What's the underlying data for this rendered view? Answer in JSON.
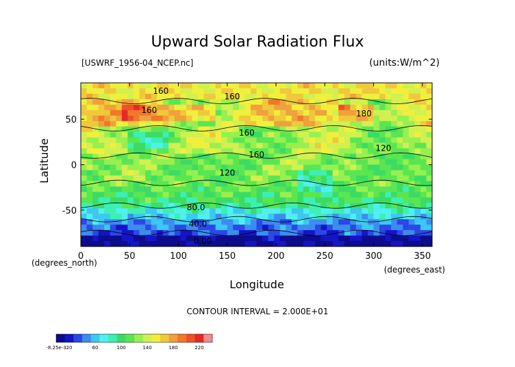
{
  "chart_data": {
    "type": "heatmap",
    "title": "Upward Solar Radiation Flux",
    "file_label": "[USWRF_1956-04_NCEP.nc]",
    "units_label": "(units:W/m^2)",
    "xlabel": "Longitude",
    "ylabel": "Latitude",
    "x_unit_label": "(degrees_east)",
    "y_unit_label": "(degrees_north)",
    "xlim": [
      0,
      360
    ],
    "ylim": [
      -90,
      90
    ],
    "x_ticks": [
      "0",
      "50",
      "100",
      "150",
      "200",
      "250",
      "300",
      "350"
    ],
    "x_tick_values": [
      0,
      50,
      100,
      150,
      200,
      250,
      300,
      350
    ],
    "y_ticks": [
      "50",
      "0",
      "-50"
    ],
    "y_tick_values": [
      50,
      0,
      -50
    ],
    "contour_interval_text": "CONTOUR INTERVAL = 2.000E+01",
    "contour_labels": [
      {
        "text": "160",
        "x": 82,
        "y": 78
      },
      {
        "text": "160",
        "x": 155,
        "y": 72
      },
      {
        "text": "160",
        "x": 70,
        "y": 57
      },
      {
        "text": "180",
        "x": 290,
        "y": 53
      },
      {
        "text": "160",
        "x": 170,
        "y": 32
      },
      {
        "text": "160",
        "x": 180,
        "y": 8
      },
      {
        "text": "120",
        "x": 310,
        "y": 15
      },
      {
        "text": "120",
        "x": 150,
        "y": -12
      },
      {
        "text": "80.0",
        "x": 118,
        "y": -50
      },
      {
        "text": "40.0",
        "x": 120,
        "y": -68
      },
      {
        "text": "0.00",
        "x": 125,
        "y": -87
      }
    ],
    "colorbar": {
      "tick_labels": [
        "-8.25e-3",
        "20",
        "60",
        "100",
        "140",
        "180",
        "220"
      ],
      "tick_values": [
        -0.00825,
        20,
        60,
        100,
        140,
        180,
        220
      ],
      "range": [
        -0.00825,
        240
      ],
      "colors": [
        "#0c0c8c",
        "#1414c8",
        "#2a48e6",
        "#3c8cf0",
        "#3cc8f0",
        "#50f0f0",
        "#3cf0b4",
        "#3cdc64",
        "#5ae650",
        "#96f050",
        "#d2f050",
        "#f0f03c",
        "#f0c83c",
        "#f0a03c",
        "#f07828",
        "#f05028",
        "#e62828",
        "#f08c8c"
      ]
    },
    "field_description_bands": [
      {
        "lat_range": [
          70,
          85
        ],
        "value_range": [
          140,
          170
        ]
      },
      {
        "lat_range": [
          40,
          70
        ],
        "value_range": [
          100,
          200
        ]
      },
      {
        "lat_range": [
          10,
          40
        ],
        "value_range": [
          110,
          170
        ]
      },
      {
        "lat_range": [
          -20,
          10
        ],
        "value_range": [
          100,
          150
        ]
      },
      {
        "lat_range": [
          -45,
          -20
        ],
        "value_range": [
          80,
          120
        ]
      },
      {
        "lat_range": [
          -60,
          -45
        ],
        "value_range": [
          60,
          90
        ]
      },
      {
        "lat_range": [
          -75,
          -60
        ],
        "value_range": [
          20,
          50
        ]
      },
      {
        "lat_range": [
          -90,
          -75
        ],
        "value_range": [
          0,
          20
        ]
      }
    ]
  }
}
